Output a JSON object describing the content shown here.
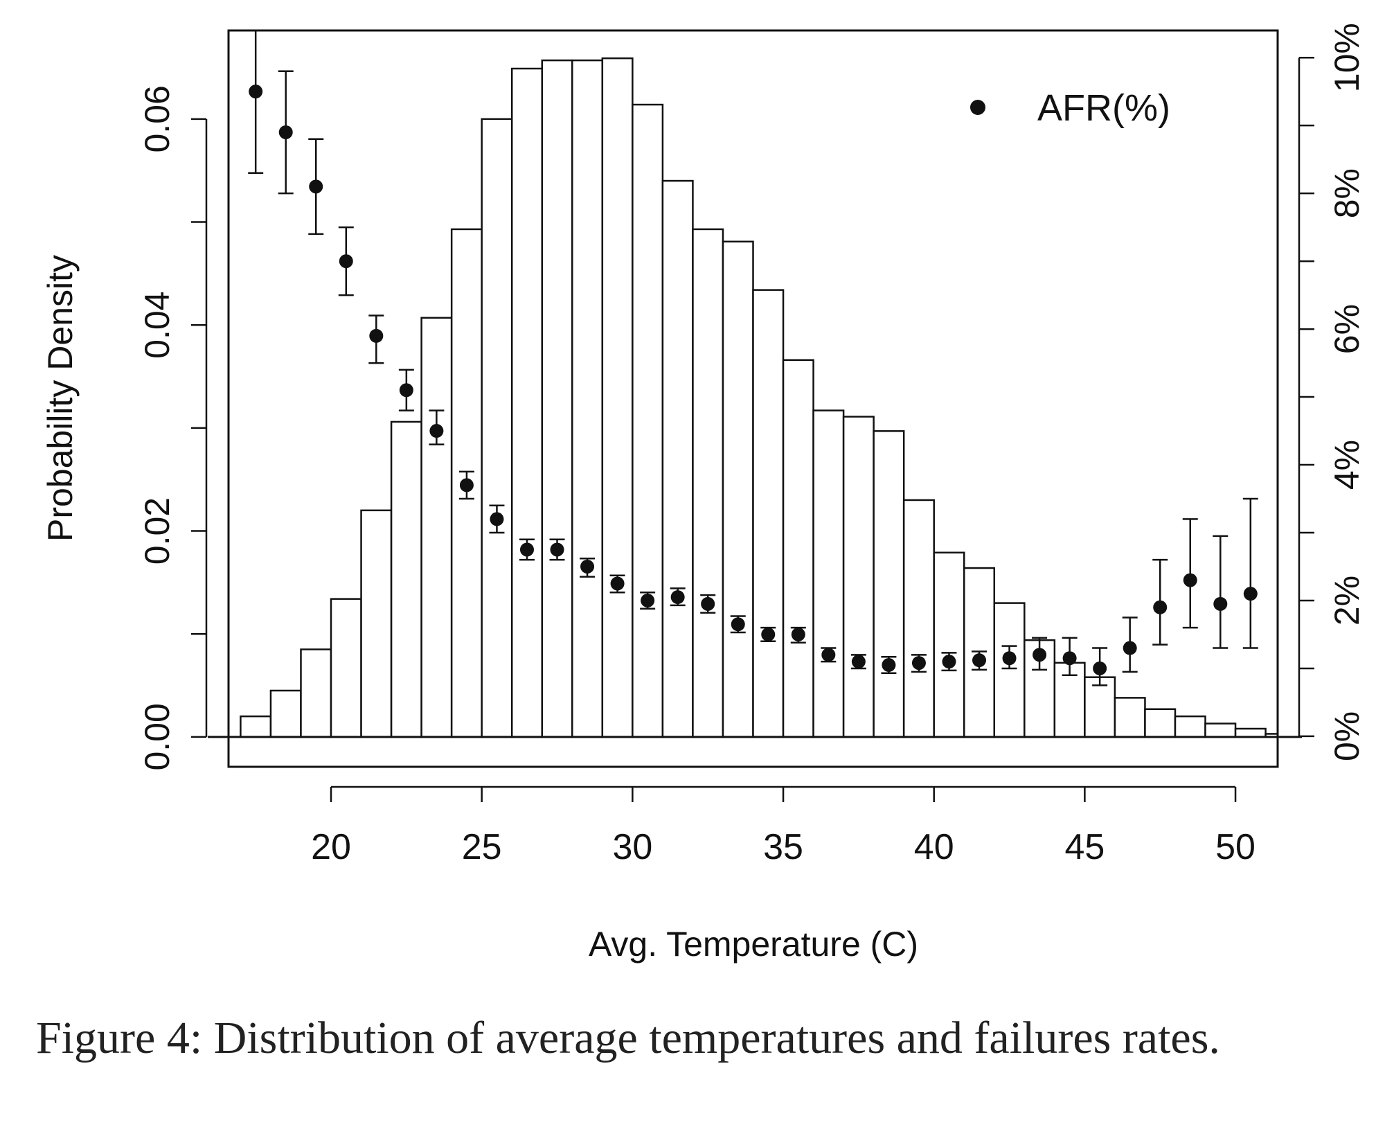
{
  "chart_data": {
    "type": "bar",
    "xlabel": "Avg. Temperature (C)",
    "ylabel": "Probability Density",
    "xlim": [
      16.6,
      51.4
    ],
    "ylim": [
      -0.0029,
      0.0686
    ],
    "y2lim": [
      -0.45,
      10.4
    ],
    "x_ticks": [
      "20",
      "25",
      "30",
      "35",
      "40",
      "45",
      "50"
    ],
    "y_ticks": [
      "0.00",
      "0.02",
      "0.04",
      "0.06"
    ],
    "y2_ticks": [
      "0%",
      "2%",
      "4%",
      "6%",
      "8%",
      "10%"
    ],
    "histogram": {
      "bins": [
        {
          "start": 17,
          "end": 18,
          "density": 0.002
        },
        {
          "start": 18,
          "end": 19,
          "density": 0.0045
        },
        {
          "start": 19,
          "end": 20,
          "density": 0.0085
        },
        {
          "start": 20,
          "end": 21,
          "density": 0.0134
        },
        {
          "start": 21,
          "end": 22,
          "density": 0.022
        },
        {
          "start": 22,
          "end": 23,
          "density": 0.0306
        },
        {
          "start": 23,
          "end": 24,
          "density": 0.0407
        },
        {
          "start": 24,
          "end": 25,
          "density": 0.0493
        },
        {
          "start": 25,
          "end": 26,
          "density": 0.06
        },
        {
          "start": 26,
          "end": 27,
          "density": 0.0649
        },
        {
          "start": 27,
          "end": 28,
          "density": 0.0657
        },
        {
          "start": 28,
          "end": 29,
          "density": 0.0657
        },
        {
          "start": 29,
          "end": 30,
          "density": 0.0659
        },
        {
          "start": 30,
          "end": 31,
          "density": 0.0614
        },
        {
          "start": 31,
          "end": 32,
          "density": 0.054
        },
        {
          "start": 32,
          "end": 33,
          "density": 0.0493
        },
        {
          "start": 33,
          "end": 34,
          "density": 0.0481
        },
        {
          "start": 34,
          "end": 35,
          "density": 0.0434
        },
        {
          "start": 35,
          "end": 36,
          "density": 0.0366
        },
        {
          "start": 36,
          "end": 37,
          "density": 0.0317
        },
        {
          "start": 37,
          "end": 38,
          "density": 0.0311
        },
        {
          "start": 38,
          "end": 39,
          "density": 0.0297
        },
        {
          "start": 39,
          "end": 40,
          "density": 0.023
        },
        {
          "start": 40,
          "end": 41,
          "density": 0.0179
        },
        {
          "start": 41,
          "end": 42,
          "density": 0.0164
        },
        {
          "start": 42,
          "end": 43,
          "density": 0.013
        },
        {
          "start": 43,
          "end": 44,
          "density": 0.0094
        },
        {
          "start": 44,
          "end": 45,
          "density": 0.0072
        },
        {
          "start": 45,
          "end": 46,
          "density": 0.0058
        },
        {
          "start": 46,
          "end": 47,
          "density": 0.0038
        },
        {
          "start": 47,
          "end": 48,
          "density": 0.0027
        },
        {
          "start": 48,
          "end": 49,
          "density": 0.002
        },
        {
          "start": 49,
          "end": 50,
          "density": 0.0013
        },
        {
          "start": 50,
          "end": 51,
          "density": 0.0008
        },
        {
          "start": 51,
          "end": 52,
          "density": 0.0003
        }
      ]
    },
    "series": [
      {
        "name": "AFR(%)",
        "axis": "right",
        "points": [
          {
            "x": 17.5,
            "y": 9.5,
            "low": 8.3,
            "high": 10.4
          },
          {
            "x": 18.5,
            "y": 8.9,
            "low": 8.0,
            "high": 9.8
          },
          {
            "x": 19.5,
            "y": 8.1,
            "low": 7.4,
            "high": 8.8
          },
          {
            "x": 20.5,
            "y": 7.0,
            "low": 6.5,
            "high": 7.5
          },
          {
            "x": 21.5,
            "y": 5.9,
            "low": 5.5,
            "high": 6.2
          },
          {
            "x": 22.5,
            "y": 5.1,
            "low": 4.8,
            "high": 5.4
          },
          {
            "x": 23.5,
            "y": 4.5,
            "low": 4.3,
            "high": 4.8
          },
          {
            "x": 24.5,
            "y": 3.7,
            "low": 3.5,
            "high": 3.9
          },
          {
            "x": 25.5,
            "y": 3.2,
            "low": 3.0,
            "high": 3.4
          },
          {
            "x": 26.5,
            "y": 2.75,
            "low": 2.6,
            "high": 2.9
          },
          {
            "x": 27.5,
            "y": 2.75,
            "low": 2.6,
            "high": 2.9
          },
          {
            "x": 28.5,
            "y": 2.5,
            "low": 2.35,
            "high": 2.62
          },
          {
            "x": 29.5,
            "y": 2.25,
            "low": 2.12,
            "high": 2.37
          },
          {
            "x": 30.5,
            "y": 2.0,
            "low": 1.88,
            "high": 2.12
          },
          {
            "x": 31.5,
            "y": 2.05,
            "low": 1.93,
            "high": 2.18
          },
          {
            "x": 32.5,
            "y": 1.95,
            "low": 1.82,
            "high": 2.08
          },
          {
            "x": 33.5,
            "y": 1.65,
            "low": 1.53,
            "high": 1.77
          },
          {
            "x": 34.5,
            "y": 1.5,
            "low": 1.4,
            "high": 1.6
          },
          {
            "x": 35.5,
            "y": 1.5,
            "low": 1.38,
            "high": 1.6
          },
          {
            "x": 36.5,
            "y": 1.2,
            "low": 1.1,
            "high": 1.3
          },
          {
            "x": 37.5,
            "y": 1.1,
            "low": 1.0,
            "high": 1.2
          },
          {
            "x": 38.5,
            "y": 1.05,
            "low": 0.93,
            "high": 1.17
          },
          {
            "x": 39.5,
            "y": 1.08,
            "low": 0.95,
            "high": 1.2
          },
          {
            "x": 40.5,
            "y": 1.1,
            "low": 0.97,
            "high": 1.23
          },
          {
            "x": 41.5,
            "y": 1.12,
            "low": 0.98,
            "high": 1.25
          },
          {
            "x": 42.5,
            "y": 1.15,
            "low": 1.0,
            "high": 1.33
          },
          {
            "x": 43.5,
            "y": 1.2,
            "low": 0.98,
            "high": 1.45
          },
          {
            "x": 44.5,
            "y": 1.15,
            "low": 0.9,
            "high": 1.45
          },
          {
            "x": 45.5,
            "y": 1.0,
            "low": 0.75,
            "high": 1.3
          },
          {
            "x": 46.5,
            "y": 1.3,
            "low": 0.95,
            "high": 1.75
          },
          {
            "x": 47.5,
            "y": 1.9,
            "low": 1.35,
            "high": 2.6
          },
          {
            "x": 48.5,
            "y": 2.3,
            "low": 1.6,
            "high": 3.2
          },
          {
            "x": 49.5,
            "y": 1.95,
            "low": 1.3,
            "high": 2.95
          },
          {
            "x": 50.5,
            "y": 2.1,
            "low": 1.3,
            "high": 3.5
          }
        ]
      }
    ],
    "legend": {
      "label": "AFR(%)",
      "position": "top-right"
    }
  },
  "caption": "Figure 4: Distribution of average temperatures and failures rates."
}
